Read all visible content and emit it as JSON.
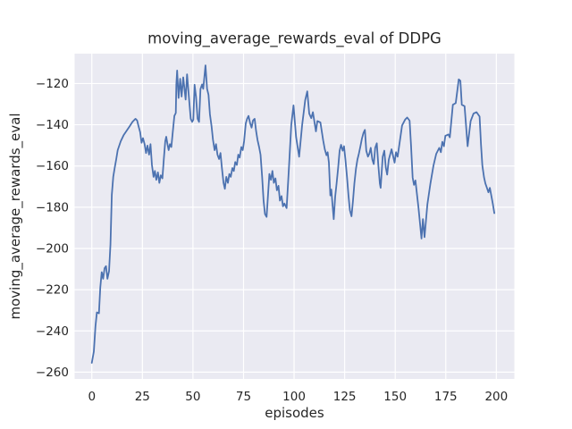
{
  "figure": {
    "title": "moving_average_rewards_eval of DDPG",
    "xlabel": "episodes",
    "ylabel": "moving_average_rewards_eval",
    "colors": {
      "line": "#4c72b0",
      "axes_background": "#eaeaf2",
      "grid": "#ffffff",
      "text": "#262626",
      "figure_background": "#ffffff"
    }
  },
  "chart_data": {
    "type": "line",
    "title": "moving_average_rewards_eval of DDPG",
    "xlabel": "episodes",
    "ylabel": "moving_average_rewards_eval",
    "xlim": [
      -8.5,
      208.9
    ],
    "ylim": [
      -263.3,
      -105.5
    ],
    "xticks": [
      0,
      25,
      50,
      75,
      100,
      125,
      150,
      175,
      200
    ],
    "yticks": [
      -260,
      -240,
      -220,
      -200,
      -180,
      -160,
      -140,
      -120
    ],
    "grid": true,
    "legend_position": "none",
    "series": [
      {
        "name": "moving_average_rewards_eval",
        "color": "#4c72b0",
        "x": [
          0,
          1,
          1.8,
          2.5,
          3.5,
          4.2,
          4.9,
          5.6,
          6.3,
          7,
          7.7,
          8.5,
          9.2,
          9.9,
          10.6,
          11.3,
          12.1,
          12.8,
          14.3,
          15.7,
          17.2,
          18.7,
          20.1,
          21.6,
          22.4,
          23.1,
          23.9,
          24.6,
          25.3,
          26.1,
          26.8,
          27.5,
          28.3,
          29,
          29.7,
          30.5,
          31.2,
          31.9,
          32.7,
          33.4,
          34.1,
          34.9,
          35.6,
          36.3,
          36.8,
          37.4,
          38,
          38.6,
          39.3,
          40,
          40.8,
          41.5,
          41.8,
          42.2,
          42.9,
          43.7,
          44.4,
          45.2,
          46.4,
          47.1,
          48.1,
          48.9,
          49.6,
          50.2,
          50.8,
          51.5,
          52.3,
          53,
          53.7,
          54.5,
          55.1,
          56.2,
          57,
          57.7,
          58.4,
          59.2,
          59.9,
          60.7,
          61.4,
          62.1,
          62.9,
          63.6,
          64.3,
          65.1,
          65.8,
          66.5,
          67.3,
          68,
          68.7,
          69.5,
          70.2,
          70.9,
          71.7,
          72.4,
          73.1,
          73.9,
          74.6,
          75.3,
          76.1,
          76.8,
          77.5,
          78.3,
          79,
          79.7,
          80.5,
          81.2,
          81.9,
          82.7,
          83.4,
          84.2,
          84.9,
          85.6,
          86.4,
          87.1,
          87.8,
          88.6,
          89.3,
          90,
          90.8,
          91.5,
          92.3,
          93,
          93.8,
          94.5,
          95.2,
          96.3,
          97.5,
          98.6,
          99.7,
          101,
          102.5,
          104,
          105.5,
          106.5,
          107.5,
          108.5,
          109.3,
          110.8,
          111.5,
          113,
          114.4,
          115.2,
          116,
          116.6,
          117.2,
          117.9,
          118.4,
          119,
          119.6,
          120.3,
          121,
          121.8,
          122.5,
          123.2,
          124,
          124.7,
          125.4,
          126.2,
          126.9,
          127.6,
          128.4,
          129.1,
          129.8,
          130.6,
          131.3,
          132,
          132.8,
          133.5,
          134.3,
          135,
          135.7,
          136.5,
          137.2,
          137.9,
          138.7,
          139.4,
          140.1,
          140.9,
          141.6,
          142.4,
          142.8,
          143.8,
          144.6,
          145.3,
          146,
          146.8,
          148.2,
          149.7,
          150.4,
          151.2,
          153.4,
          154.9,
          155.9,
          157.1,
          157.8,
          158.6,
          159.3,
          160,
          161.5,
          163,
          163.7,
          164.5,
          165.9,
          167.4,
          168.9,
          170.3,
          171.8,
          172.6,
          173.3,
          174.1,
          174.8,
          176.3,
          177,
          178.5,
          179.9,
          181.4,
          182.2,
          182.9,
          184.3,
          185.8,
          187.3,
          188.7,
          190.2,
          191.7,
          192.4,
          193.1,
          193.9,
          194.6,
          195.4,
          196.1,
          196.8,
          198.3,
          199
        ],
        "y": [
          -255.5,
          -250,
          -237.8,
          -231,
          -231.5,
          -219,
          -211.5,
          -214.7,
          -209.6,
          -208.6,
          -214.7,
          -211,
          -198,
          -174,
          -165.3,
          -161,
          -156.6,
          -152.3,
          -148,
          -145.1,
          -142.9,
          -140.7,
          -138.6,
          -137.1,
          -137.9,
          -140.7,
          -143.6,
          -148.7,
          -146.5,
          -149.4,
          -153.7,
          -150.1,
          -154.5,
          -149.4,
          -159.5,
          -165.3,
          -162.4,
          -166.7,
          -163.1,
          -168.2,
          -164.5,
          -166,
          -156.6,
          -148,
          -145.8,
          -149.4,
          -152.3,
          -149.4,
          -150.8,
          -143.6,
          -135.7,
          -134.3,
          -120.5,
          -113.7,
          -127,
          -117.7,
          -126.3,
          -117,
          -127.8,
          -115.5,
          -127.8,
          -137.1,
          -138.6,
          -137.5,
          -120.6,
          -126.3,
          -137.1,
          -138.6,
          -122.7,
          -120.4,
          -122.6,
          -111.2,
          -122.6,
          -125.5,
          -135,
          -140.7,
          -147.3,
          -152.3,
          -149.4,
          -154.5,
          -156.6,
          -153.7,
          -161,
          -168.2,
          -171.1,
          -165.3,
          -168.2,
          -163.9,
          -165.3,
          -161,
          -162.4,
          -158.1,
          -159.5,
          -154.5,
          -155.9,
          -150.8,
          -152.3,
          -148,
          -139.3,
          -137.1,
          -135.7,
          -139.3,
          -141.4,
          -137.9,
          -137.1,
          -142.9,
          -147.3,
          -150.8,
          -154.5,
          -165.3,
          -176.8,
          -183.3,
          -184.7,
          -173.9,
          -163.9,
          -166.7,
          -162.4,
          -168.2,
          -166,
          -171.8,
          -169.6,
          -176.8,
          -174.6,
          -179.6,
          -178.2,
          -180.4,
          -160,
          -140,
          -130.6,
          -146,
          -155.5,
          -140,
          -128,
          -123.8,
          -134.6,
          -136.8,
          -133.9,
          -143.2,
          -138.2,
          -138.9,
          -147.6,
          -151.9,
          -154.8,
          -153.3,
          -158.4,
          -174.3,
          -171.4,
          -178.6,
          -185.8,
          -175,
          -168.5,
          -160.6,
          -152.6,
          -149.7,
          -152.6,
          -150.4,
          -156.9,
          -165.6,
          -174.3,
          -181.5,
          -184.4,
          -177.1,
          -168.5,
          -161.3,
          -156.9,
          -154.1,
          -150.4,
          -146.8,
          -143.9,
          -142.5,
          -152.6,
          -155.5,
          -154.1,
          -151.2,
          -156.9,
          -159.1,
          -151.2,
          -149,
          -159.1,
          -168.5,
          -170.6,
          -155.5,
          -152.6,
          -160.6,
          -164.2,
          -156.9,
          -151.9,
          -158.4,
          -153.3,
          -155.5,
          -140.3,
          -137.5,
          -136.5,
          -138,
          -150,
          -165.6,
          -169.2,
          -167,
          -180.1,
          -195.2,
          -185.8,
          -194.5,
          -178.6,
          -168.5,
          -159.8,
          -154.1,
          -151.2,
          -153.3,
          -148.3,
          -150.4,
          -145.4,
          -144.7,
          -146.1,
          -130.3,
          -129.5,
          -118,
          -118.7,
          -130.3,
          -131,
          -150.4,
          -138.2,
          -134.6,
          -133.9,
          -136,
          -149.7,
          -159.8,
          -165.6,
          -168.5,
          -170.7,
          -172.8,
          -170.6,
          -178.6,
          -182.9
        ]
      }
    ]
  }
}
